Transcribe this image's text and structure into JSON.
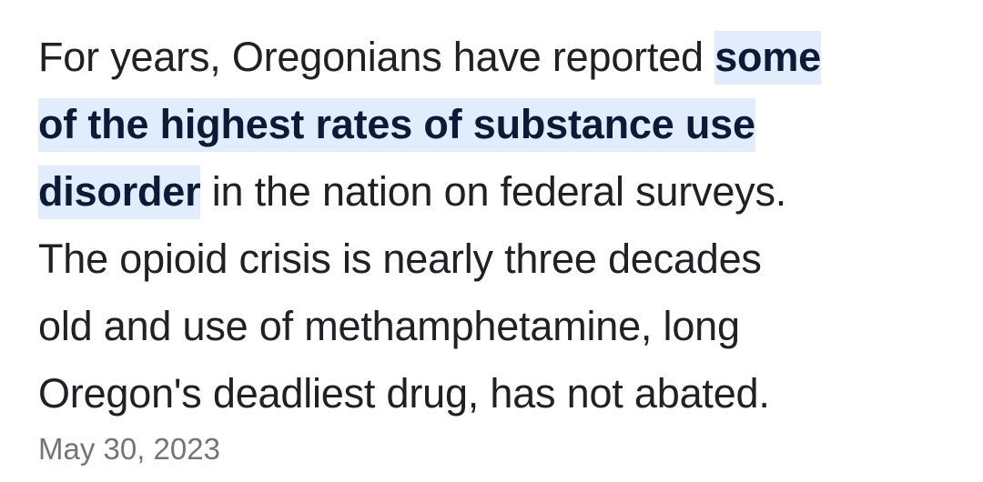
{
  "snippet": {
    "lines": [
      {
        "plain": "For years, Oregonians have reported ",
        "highlight": "some"
      },
      {
        "highlight": "of the highest rates of substance use"
      },
      {
        "highlight": "disorder",
        "plain": " in the nation on federal surveys."
      },
      {
        "plain": "The opioid crisis is nearly three decades"
      },
      {
        "plain": "old and use of methamphetamine, long"
      },
      {
        "plain": "Oregon's deadliest drug, has not abated."
      }
    ],
    "date": "May 30, 2023"
  },
  "colors": {
    "text": "#202124",
    "highlight_background": "#e1ecfd",
    "highlight_text": "#0b1a36",
    "date_text": "#70757a"
  }
}
